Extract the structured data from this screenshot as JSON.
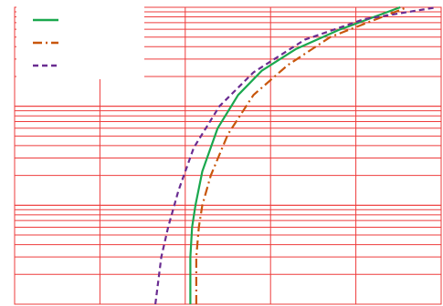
{
  "chart_data": {
    "type": "line",
    "title": "",
    "xlabel": "",
    "ylabel": "",
    "xscale": "linear",
    "yscale": "log",
    "xlim": [
      0,
      5
    ],
    "ylim": [
      1,
      1000
    ],
    "grid": true,
    "legend_placement": "top-left",
    "colors": {
      "grid": "#ee3b3b",
      "background": "#ffffff",
      "legend_bg": "#ffffff"
    },
    "series": [
      {
        "style": "solid",
        "color": "#1aa84e",
        "points": [
          [
            2.06,
            1
          ],
          [
            2.06,
            3
          ],
          [
            2.08,
            6
          ],
          [
            2.12,
            10
          ],
          [
            2.2,
            22
          ],
          [
            2.38,
            60
          ],
          [
            2.62,
            130
          ],
          [
            2.9,
            230
          ],
          [
            3.3,
            380
          ],
          [
            3.8,
            590
          ],
          [
            4.52,
            1000
          ]
        ]
      },
      {
        "style": "dashdot",
        "color": "#c8560c",
        "points": [
          [
            2.13,
            1
          ],
          [
            2.13,
            3
          ],
          [
            2.16,
            6
          ],
          [
            2.2,
            10
          ],
          [
            2.3,
            20
          ],
          [
            2.5,
            52
          ],
          [
            2.8,
            130
          ],
          [
            3.2,
            260
          ],
          [
            3.7,
            500
          ],
          [
            4.6,
            1000
          ]
        ]
      },
      {
        "style": "dashed",
        "color": "#6a2c91",
        "points": [
          [
            1.65,
            1
          ],
          [
            1.72,
            3
          ],
          [
            1.8,
            6
          ],
          [
            1.92,
            14
          ],
          [
            2.1,
            38
          ],
          [
            2.4,
            100
          ],
          [
            2.8,
            220
          ],
          [
            3.4,
            470
          ],
          [
            4.1,
            760
          ],
          [
            4.95,
            1000
          ]
        ]
      }
    ]
  }
}
